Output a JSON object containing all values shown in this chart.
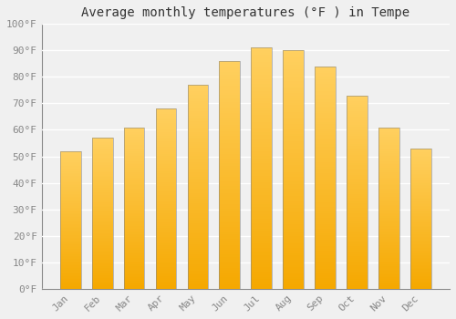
{
  "title": "Average monthly temperatures (°F ) in Tempe",
  "months": [
    "Jan",
    "Feb",
    "Mar",
    "Apr",
    "May",
    "Jun",
    "Jul",
    "Aug",
    "Sep",
    "Oct",
    "Nov",
    "Dec"
  ],
  "values": [
    52,
    57,
    61,
    68,
    77,
    86,
    91,
    90,
    84,
    73,
    61,
    53
  ],
  "bar_color_top": "#FFD060",
  "bar_color_bottom": "#F5A800",
  "bar_edge_color": "#888888",
  "ylim": [
    0,
    100
  ],
  "yticks": [
    0,
    10,
    20,
    30,
    40,
    50,
    60,
    70,
    80,
    90,
    100
  ],
  "ytick_labels": [
    "0°F",
    "10°F",
    "20°F",
    "30°F",
    "40°F",
    "50°F",
    "60°F",
    "70°F",
    "80°F",
    "90°F",
    "100°F"
  ],
  "background_color": "#f0f0f0",
  "grid_color": "#ffffff",
  "title_fontsize": 10,
  "tick_fontsize": 8,
  "font_family": "monospace",
  "tick_color": "#888888",
  "title_color": "#333333"
}
